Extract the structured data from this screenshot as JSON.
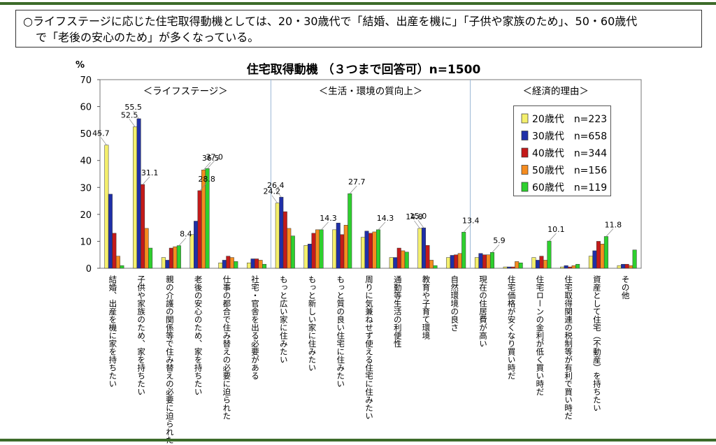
{
  "headline": {
    "line1": "○ライフステージに応じた住宅取得動機としては、20・30歳代で「結婚、出産を機に」「子供や家族のため」、50・60歳代",
    "line2": "で「老後の安心のため」が多くなっている。"
  },
  "chart_data": {
    "type": "bar",
    "title": "住宅取得動機 （３つまで回答可）n=1500",
    "ylabel": "%",
    "ylim": [
      0,
      70
    ],
    "yticks": [
      0,
      10,
      20,
      30,
      40,
      50,
      60,
      70
    ],
    "grid": false,
    "legend_position": "top-right",
    "groups": [
      {
        "label": "＜ライフステージ＞",
        "start": 0,
        "end": 5
      },
      {
        "label": "＜生活・環境の質向上＞",
        "start": 6,
        "end": 12
      },
      {
        "label": "＜経済的理由＞",
        "start": 13,
        "end": 18
      }
    ],
    "categories": [
      "結婚、出産を機に家を持ちたい",
      "子供や家族のため、家を持ちたい",
      "親の介護の関係等で住み替えの必要に迫られた",
      "老後の安心のため、家を持ちたい",
      "仕事の都合で住み替えの必要に迫られた",
      "社宅・官舎を出る必要がある",
      "もっと広い家に住みたい",
      "もっと新しい家に住みたい",
      "もっと質の良い住宅に住みたい",
      "周りに気兼ねせず使える住宅に住みたい",
      "通勤等生活の利便性",
      "教育や子育て環境",
      "自然環境の良さ",
      "現在の住居費が高い",
      "住宅価格が安くなり買い時だ",
      "住宅ローンの金利が低く買い時だ",
      "住宅取得関連の税制等が有利で買い時だ",
      "資産として住宅（不動産）を持ちたい",
      "その他"
    ],
    "series": [
      {
        "name": "20歳代　n=223",
        "color": "#f4ef6c",
        "values": [
          45.7,
          52.5,
          4.0,
          12.5,
          2.0,
          2.0,
          24.2,
          8.5,
          14.3,
          11.5,
          4.0,
          14.8,
          4.0,
          4.0,
          0.5,
          4.0,
          0.5,
          4.5,
          1.0
        ]
      },
      {
        "name": "30歳代　n=658",
        "color": "#1f2fa8",
        "values": [
          27.5,
          55.5,
          3.0,
          17.5,
          3.0,
          3.5,
          26.4,
          9.0,
          16.8,
          13.8,
          4.0,
          15.0,
          4.8,
          5.5,
          0.5,
          3.0,
          1.0,
          6.5,
          1.5
        ]
      },
      {
        "name": "40歳代　n=344",
        "color": "#c41a1a",
        "values": [
          13.0,
          31.1,
          7.5,
          28.8,
          4.5,
          3.5,
          21.0,
          13.0,
          12.5,
          13.0,
          7.5,
          8.5,
          5.0,
          5.0,
          0.5,
          4.5,
          0.5,
          10.0,
          1.5
        ]
      },
      {
        "name": "50歳代　n=156",
        "color": "#f58c1f",
        "values": [
          4.5,
          14.8,
          8.0,
          36.5,
          4.0,
          3.0,
          14.8,
          14.3,
          16.0,
          13.5,
          6.5,
          3.0,
          5.5,
          5.0,
          2.5,
          3.0,
          1.0,
          9.0,
          1.0
        ]
      },
      {
        "name": "60歳代　n=119",
        "color": "#2ed02e",
        "values": [
          1.0,
          7.5,
          8.4,
          37.0,
          2.5,
          1.5,
          12.0,
          14.3,
          27.7,
          14.3,
          6.0,
          1.0,
          13.4,
          5.9,
          2.0,
          10.1,
          1.5,
          11.8,
          6.8
        ]
      }
    ],
    "data_labels": [
      {
        "series": 0,
        "category": 0,
        "text": "45.7"
      },
      {
        "series": 0,
        "category": 1,
        "text": "52.5"
      },
      {
        "series": 1,
        "category": 1,
        "text": "55.5"
      },
      {
        "series": 2,
        "category": 1,
        "text": "31.1"
      },
      {
        "series": 4,
        "category": 2,
        "text": "8.4"
      },
      {
        "series": 2,
        "category": 3,
        "text": "28.8"
      },
      {
        "series": 3,
        "category": 3,
        "text": "36.5"
      },
      {
        "series": 4,
        "category": 3,
        "text": "37.0"
      },
      {
        "series": 0,
        "category": 6,
        "text": "24.2"
      },
      {
        "series": 1,
        "category": 6,
        "text": "26.4"
      },
      {
        "series": 4,
        "category": 7,
        "text": "14.3"
      },
      {
        "series": 4,
        "category": 8,
        "text": "27.7"
      },
      {
        "series": 4,
        "category": 9,
        "text": "14.3"
      },
      {
        "series": 0,
        "category": 11,
        "text": "14.8"
      },
      {
        "series": 1,
        "category": 11,
        "text": "15.0"
      },
      {
        "series": 4,
        "category": 12,
        "text": "13.4"
      },
      {
        "series": 4,
        "category": 13,
        "text": "5.9"
      },
      {
        "series": 4,
        "category": 15,
        "text": "10.1"
      },
      {
        "series": 4,
        "category": 17,
        "text": "11.8"
      }
    ]
  }
}
